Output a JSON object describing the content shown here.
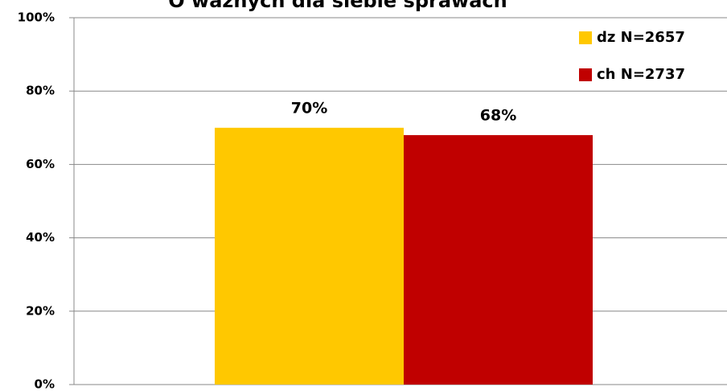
{
  "chart_data": {
    "type": "bar",
    "title": "O ważnych dla siebie sprawach",
    "categories": [
      null
    ],
    "series": [
      {
        "name": "dz N=2657",
        "color": "#ffc800",
        "values": [
          70
        ],
        "value_labels": [
          "70%"
        ]
      },
      {
        "name": "ch N=2737",
        "color": "#c00000",
        "values": [
          68
        ],
        "value_labels": [
          "68%"
        ]
      }
    ],
    "ylim": [
      0,
      100
    ],
    "yticks": [
      {
        "value": 0,
        "label": "0%"
      },
      {
        "value": 20,
        "label": "20%"
      },
      {
        "value": 40,
        "label": "40%"
      },
      {
        "value": 60,
        "label": "60%"
      },
      {
        "value": 80,
        "label": "80%"
      },
      {
        "value": 100,
        "label": "100%"
      }
    ],
    "grid": true,
    "legend": "top-right"
  }
}
